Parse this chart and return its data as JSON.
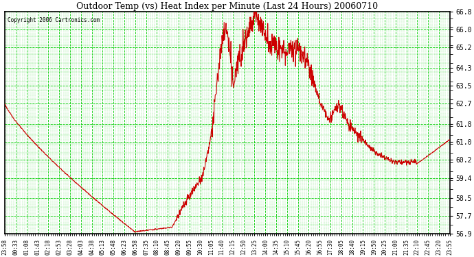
{
  "title": "Outdoor Temp (vs) Heat Index per Minute (Last 24 Hours) 20060710",
  "copyright": "Copyright 2006 Cartronics.com",
  "line_color": "#cc0000",
  "grid_color": "#00cc00",
  "background_color": "#ffffff",
  "plot_bg_color": "#ffffff",
  "ymin": 56.9,
  "ymax": 66.8,
  "yticks": [
    56.9,
    57.7,
    58.5,
    59.4,
    60.2,
    61.0,
    61.8,
    62.7,
    63.5,
    64.3,
    65.2,
    66.0,
    66.8
  ],
  "xtick_labels": [
    "23:58",
    "00:33",
    "01:08",
    "01:43",
    "02:18",
    "02:53",
    "03:28",
    "04:03",
    "04:38",
    "05:13",
    "05:48",
    "06:23",
    "06:58",
    "07:35",
    "08:10",
    "08:45",
    "09:20",
    "09:55",
    "10:30",
    "11:05",
    "11:40",
    "12:15",
    "12:50",
    "13:25",
    "14:00",
    "14:35",
    "15:10",
    "15:45",
    "16:20",
    "16:55",
    "17:30",
    "18:05",
    "18:40",
    "19:15",
    "19:50",
    "20:25",
    "21:00",
    "21:35",
    "22:10",
    "22:45",
    "23:20",
    "23:55"
  ]
}
